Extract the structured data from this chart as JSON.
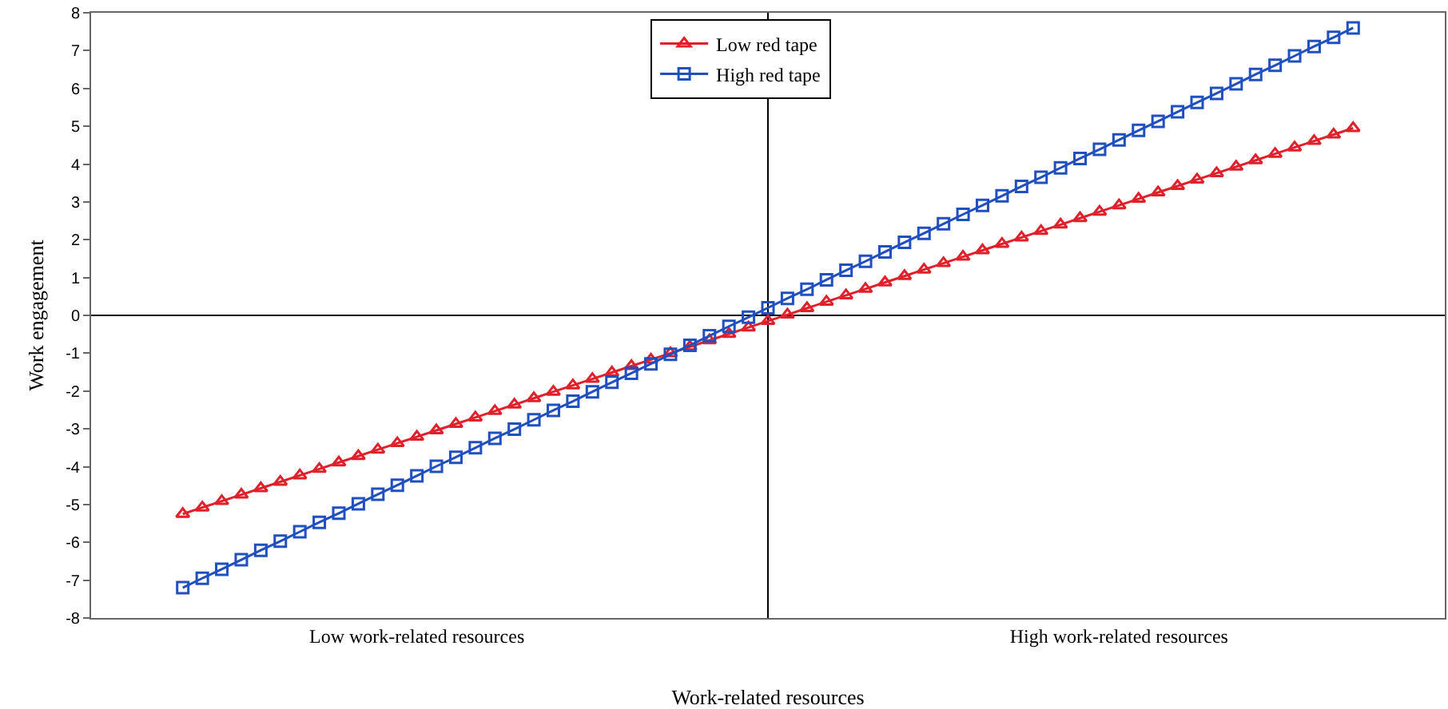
{
  "chart_data": {
    "type": "line",
    "xlabel": "Work-related resources",
    "ylabel": "Work engagement",
    "categories": [
      null,
      null,
      null,
      null,
      null,
      null,
      null,
      null,
      null,
      null,
      null,
      null,
      "Low work-related resources",
      null,
      null,
      null,
      null,
      null,
      null,
      null,
      null,
      null,
      null,
      null,
      null,
      null,
      null,
      null,
      null,
      null,
      null,
      null,
      null,
      null,
      null,
      null,
      null,
      null,
      null,
      null,
      null,
      null,
      null,
      null,
      null,
      null,
      null,
      null,
      "High work-related resources",
      null,
      null,
      null,
      null,
      null,
      null,
      null,
      null,
      null,
      null,
      null,
      null
    ],
    "series": [
      {
        "name": "Low red tape",
        "color": "#e0202a",
        "marker": "triangle",
        "values": [
          -5.25,
          -5.08,
          -4.91,
          -4.74,
          -4.57,
          -4.4,
          -4.23,
          -4.06,
          -3.89,
          -3.72,
          -3.55,
          -3.38,
          -3.21,
          -3.04,
          -2.87,
          -2.7,
          -2.53,
          -2.36,
          -2.19,
          -2.02,
          -1.85,
          -1.68,
          -1.51,
          -1.34,
          -1.17,
          -1,
          -0.83,
          -0.66,
          -0.49,
          -0.32,
          -0.15,
          0.02,
          0.19,
          0.36,
          0.53,
          0.7,
          0.87,
          1.04,
          1.21,
          1.38,
          1.55,
          1.72,
          1.89,
          2.06,
          2.23,
          2.4,
          2.57,
          2.74,
          2.91,
          3.08,
          3.25,
          3.42,
          3.59,
          3.76,
          3.93,
          4.1,
          4.27,
          4.44,
          4.61,
          4.78,
          4.95
        ]
      },
      {
        "name": "High red tape",
        "color": "#2050c0",
        "marker": "square",
        "values": [
          -7.2,
          -6.95,
          -6.71,
          -6.46,
          -6.21,
          -5.97,
          -5.72,
          -5.47,
          -5.23,
          -4.98,
          -4.73,
          -4.49,
          -4.24,
          -3.99,
          -3.75,
          -3.5,
          -3.25,
          -3.01,
          -2.76,
          -2.51,
          -2.27,
          -2.02,
          -1.77,
          -1.53,
          -1.28,
          -1.03,
          -0.79,
          -0.54,
          -0.29,
          -0.05,
          0.2,
          0.45,
          0.69,
          0.94,
          1.19,
          1.43,
          1.68,
          1.93,
          2.17,
          2.42,
          2.67,
          2.91,
          3.16,
          3.41,
          3.65,
          3.9,
          4.15,
          4.39,
          4.64,
          4.89,
          5.13,
          5.38,
          5.63,
          5.87,
          6.12,
          6.37,
          6.61,
          6.86,
          7.11,
          7.35,
          7.6
        ]
      }
    ],
    "ylim": [
      -8,
      8
    ],
    "yticks": [
      -8,
      -7,
      -6,
      -5,
      -4,
      -3,
      -2,
      -1,
      0,
      1,
      2,
      3,
      4,
      5,
      6,
      7,
      8
    ],
    "ref_lines": [
      {
        "axis": "y",
        "value": 0,
        "color": "#000000"
      }
    ],
    "legend": "top",
    "grid": false,
    "line_style": "solid"
  }
}
